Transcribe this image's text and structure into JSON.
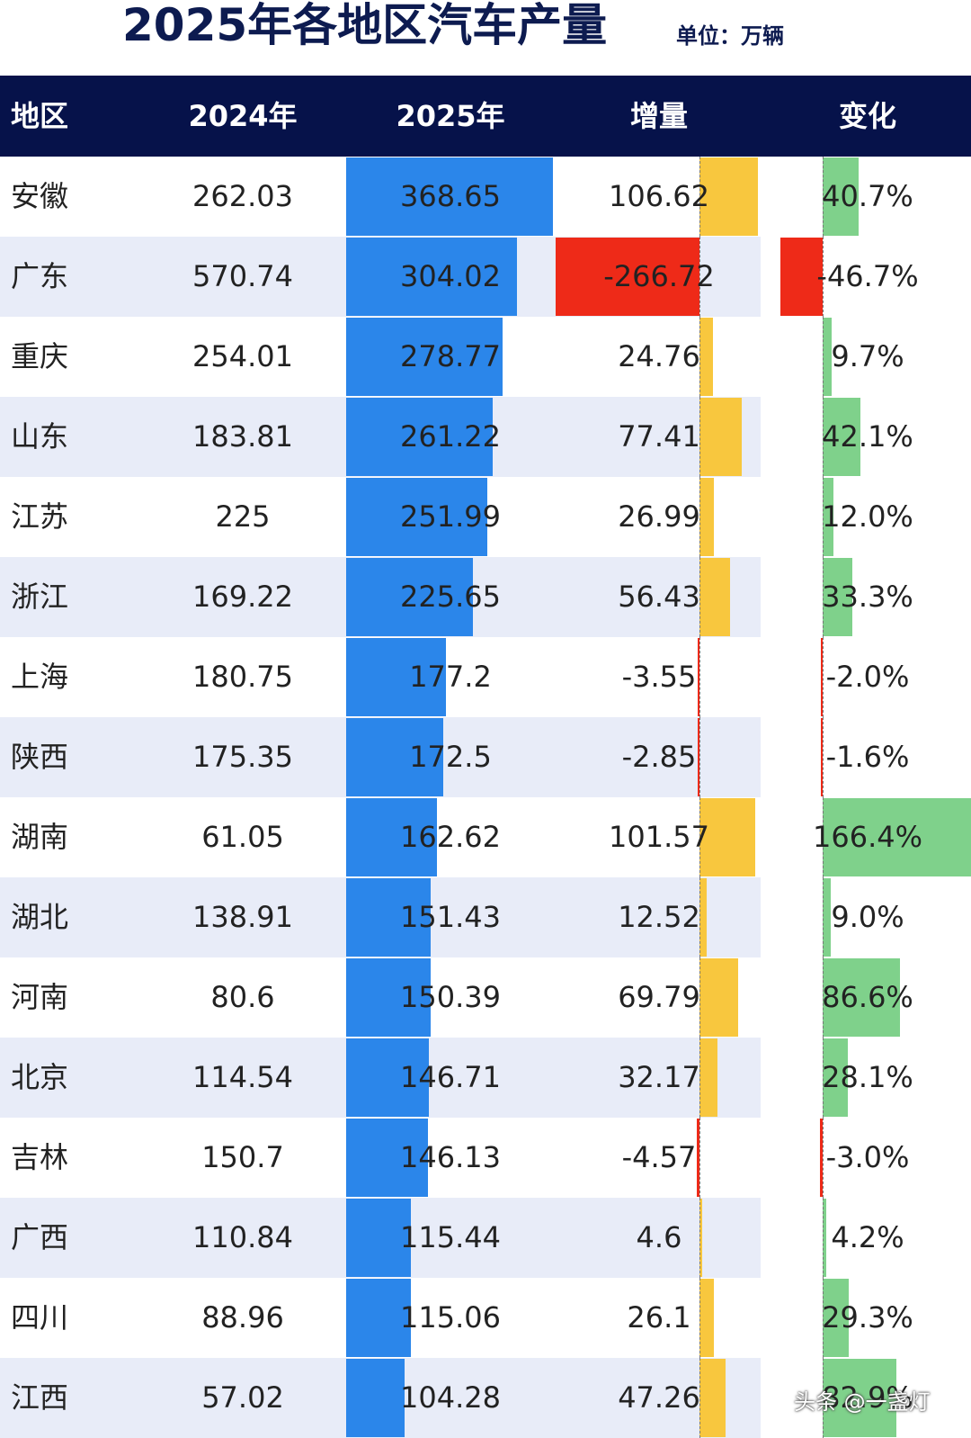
{
  "title": "2025年各地区汽车产量",
  "unit": "单位：万辆",
  "watermark": "头条 @一盏灯",
  "chart_data": {
    "type": "table",
    "columns": [
      "地区",
      "2024年",
      "2025年",
      "增量",
      "变化"
    ],
    "rows": [
      {
        "region": "安徽",
        "y2024": "262.03",
        "y2025": "368.65",
        "increase": "106.62",
        "change": "40.7%"
      },
      {
        "region": "广东",
        "y2024": "570.74",
        "y2025": "304.02",
        "increase": "-266.72",
        "change": "-46.7%"
      },
      {
        "region": "重庆",
        "y2024": "254.01",
        "y2025": "278.77",
        "increase": "24.76",
        "change": "9.7%"
      },
      {
        "region": "山东",
        "y2024": "183.81",
        "y2025": "261.22",
        "increase": "77.41",
        "change": "42.1%"
      },
      {
        "region": "江苏",
        "y2024": "225",
        "y2025": "251.99",
        "increase": "26.99",
        "change": "12.0%"
      },
      {
        "region": "浙江",
        "y2024": "169.22",
        "y2025": "225.65",
        "increase": "56.43",
        "change": "33.3%"
      },
      {
        "region": "上海",
        "y2024": "180.75",
        "y2025": "177.2",
        "increase": "-3.55",
        "change": "-2.0%"
      },
      {
        "region": "陕西",
        "y2024": "175.35",
        "y2025": "172.5",
        "increase": "-2.85",
        "change": "-1.6%"
      },
      {
        "region": "湖南",
        "y2024": "61.05",
        "y2025": "162.62",
        "increase": "101.57",
        "change": "166.4%"
      },
      {
        "region": "湖北",
        "y2024": "138.91",
        "y2025": "151.43",
        "increase": "12.52",
        "change": "9.0%"
      },
      {
        "region": "河南",
        "y2024": "80.6",
        "y2025": "150.39",
        "increase": "69.79",
        "change": "86.6%"
      },
      {
        "region": "北京",
        "y2024": "114.54",
        "y2025": "146.71",
        "increase": "32.17",
        "change": "28.1%"
      },
      {
        "region": "吉林",
        "y2024": "150.7",
        "y2025": "146.13",
        "increase": "-4.57",
        "change": "-3.0%"
      },
      {
        "region": "广西",
        "y2024": "110.84",
        "y2025": "115.44",
        "increase": "4.6",
        "change": "4.2%"
      },
      {
        "region": "四川",
        "y2024": "88.96",
        "y2025": "115.06",
        "increase": "26.1",
        "change": "29.3%"
      },
      {
        "region": "江西",
        "y2024": "57.02",
        "y2025": "104.28",
        "increase": "47.26",
        "change": "82.9%"
      }
    ]
  },
  "colors": {
    "header_bg": "#06124a",
    "title_text": "#0d1b50",
    "band": "#e8ecf8",
    "bar_2025": "#2b86ea",
    "bar_increase_pos": "#f8c73e",
    "bar_negative": "#ee2a18",
    "bar_change_pos": "#7fd18b"
  }
}
